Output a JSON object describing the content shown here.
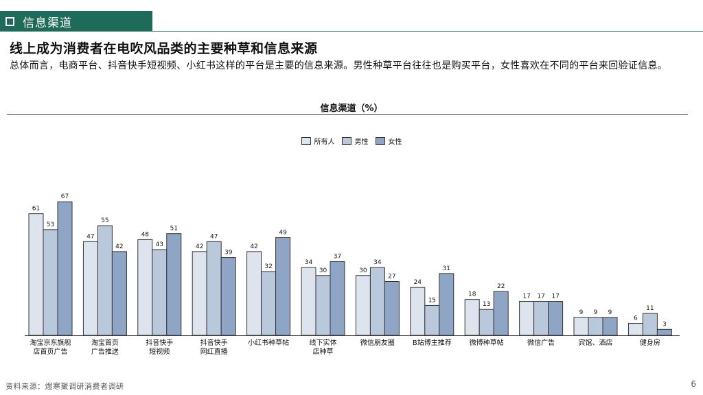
{
  "header": {
    "section_title": "信息渠道",
    "page_title": "线上成为消费者在电吹风品类的主要种草和信息来源",
    "subtitle": "总体而言，电商平台、抖音快手短视频、小红书这样的平台是主要的信息来源。男性种草平台往往也是购买平台，女性喜欢在不同的平台来回验证信息。"
  },
  "colors": {
    "accent": "#1f6b5a",
    "series": [
      "#dde4ee",
      "#bac8dc",
      "#8fa5c6"
    ]
  },
  "chart_data": {
    "type": "bar",
    "title": "信息渠道（%）",
    "categories": [
      [
        "淘宝京东旗舰",
        "店首页广告"
      ],
      [
        "淘宝首页",
        "广告推送"
      ],
      [
        "抖音快手",
        "短视频"
      ],
      [
        "抖音快手",
        "网红直播"
      ],
      [
        "小红书种草帖"
      ],
      [
        "线下实体",
        "店种草"
      ],
      [
        "微信朋友圈"
      ],
      [
        "B站博主推荐"
      ],
      [
        "微博种草帖"
      ],
      [
        "微信广告"
      ],
      [
        "宾馆、酒店"
      ],
      [
        "健身房"
      ]
    ],
    "series": [
      {
        "name": "所有人",
        "values": [
          61,
          47,
          48,
          42,
          42,
          34,
          30,
          24,
          18,
          17,
          9,
          6
        ]
      },
      {
        "name": "男性",
        "values": [
          53,
          55,
          43,
          47,
          32,
          30,
          34,
          15,
          13,
          17,
          9,
          11
        ]
      },
      {
        "name": "女性",
        "values": [
          67,
          42,
          51,
          39,
          49,
          37,
          27,
          31,
          22,
          17,
          9,
          3
        ]
      }
    ],
    "ylim": [
      0,
      70
    ],
    "legend": "top-center",
    "grid": false
  },
  "footer": {
    "source": "资料来源：煜寒聚调研消费者调研",
    "page": "6"
  }
}
